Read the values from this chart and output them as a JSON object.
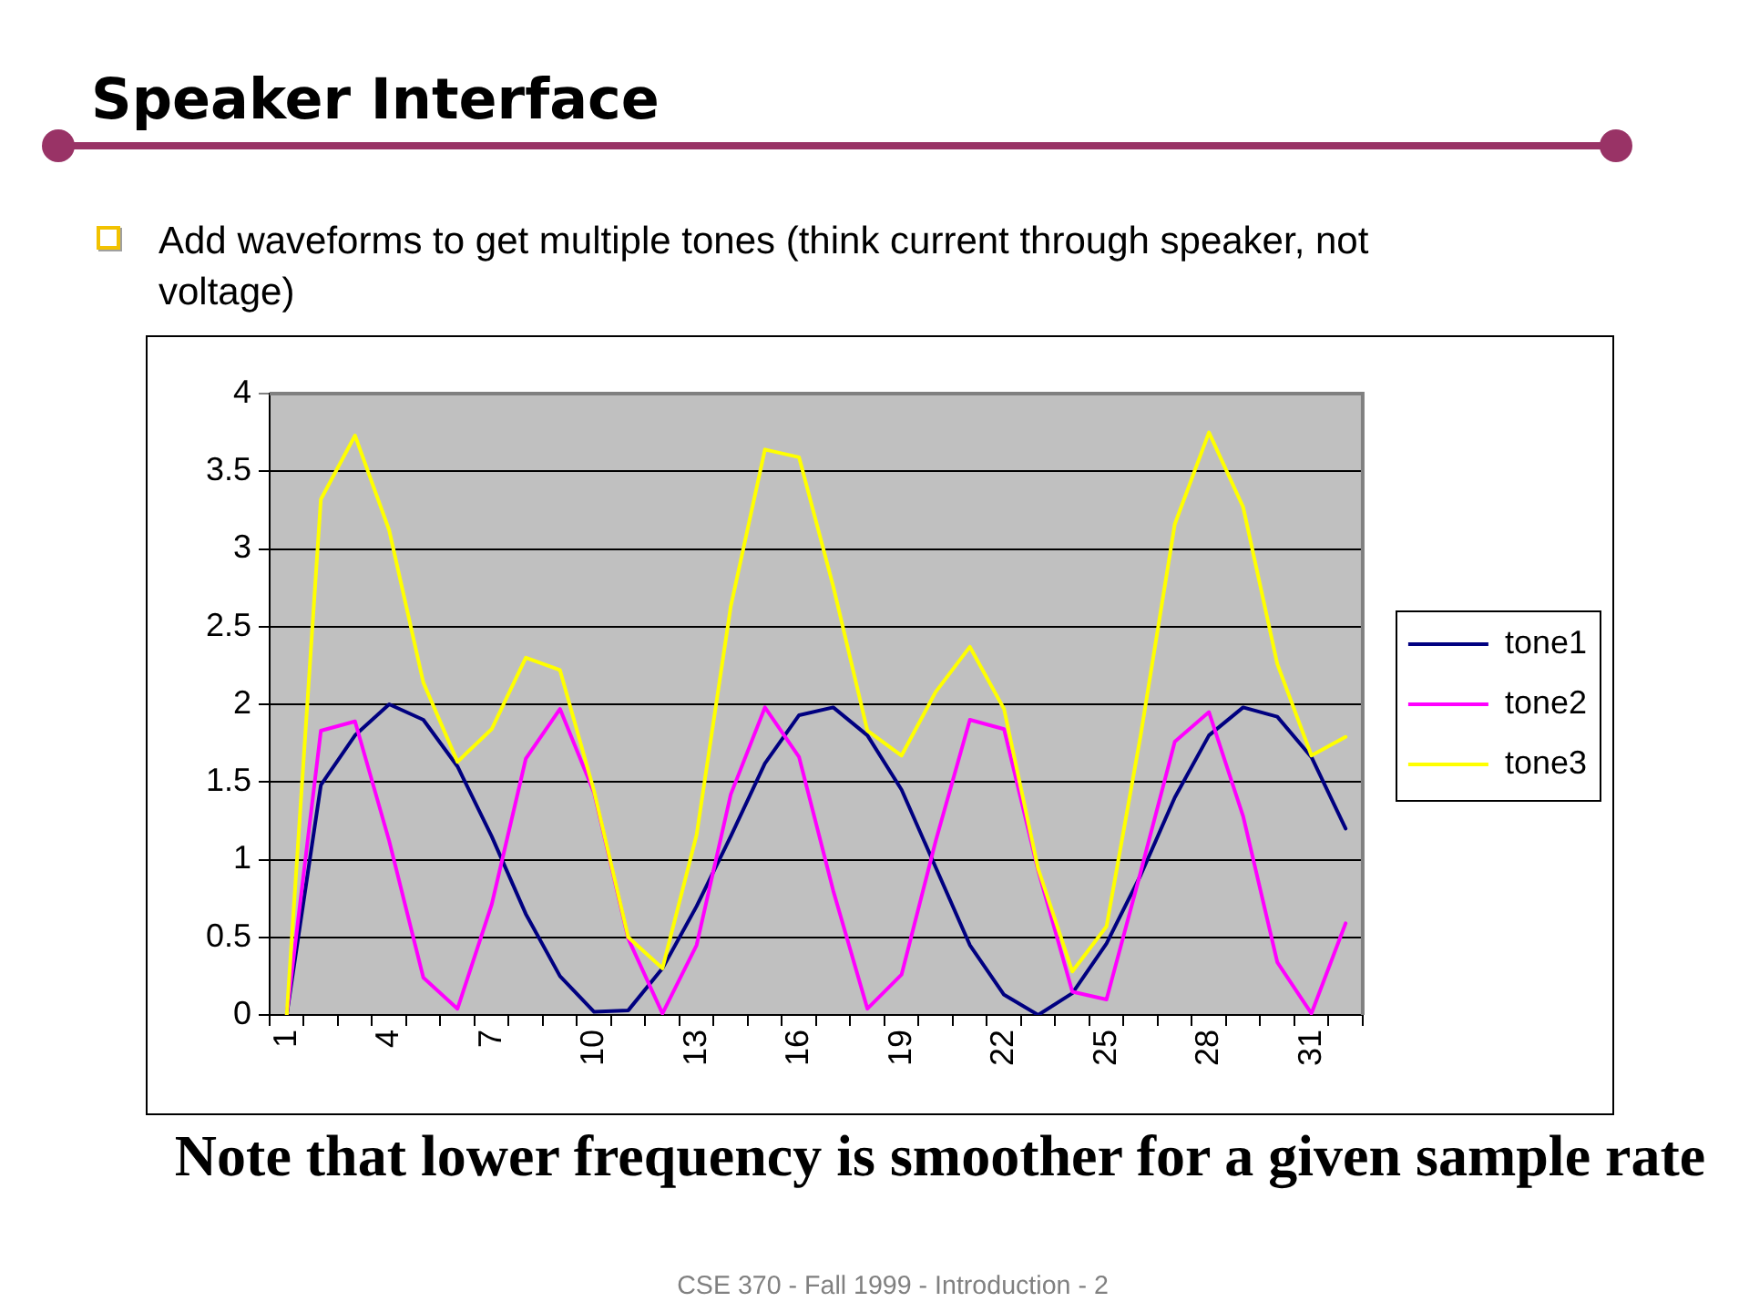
{
  "chart_data": {
    "type": "line",
    "title": "Speaker Interface",
    "subtitle": "Add waveforms to get multiple tones (think current through speaker, not voltage)",
    "annotations": [
      "Note that lower frequency is smoother for a given sample rate",
      "CSE 370 - Fall 1999 - Introduction - 2"
    ],
    "categories": [
      "1",
      null,
      null,
      "4",
      null,
      null,
      "7",
      null,
      null,
      "10",
      null,
      null,
      "13",
      null,
      null,
      "16",
      null,
      null,
      "19",
      null,
      null,
      "22",
      null,
      null,
      "25",
      null,
      null,
      "28",
      null,
      null,
      "31",
      null
    ],
    "series": [
      {
        "name": "tone1",
        "color": "#000080",
        "values": [
          0,
          1.48,
          1.8,
          2,
          1.9,
          1.6,
          1.15,
          0.65,
          0.25,
          0.02,
          0.03,
          0.3,
          0.7,
          1.15,
          1.62,
          1.93,
          1.98,
          1.8,
          1.45,
          0.95,
          0.45,
          0.13,
          0,
          0.14,
          0.46,
          0.9,
          1.4,
          1.8,
          1.98,
          1.92,
          1.66,
          1.2
        ]
      },
      {
        "name": "tone2",
        "color": "#ff00ff",
        "values": [
          0,
          1.83,
          1.89,
          1.12,
          0.24,
          0.04,
          0.71,
          1.65,
          1.97,
          1.43,
          0.49,
          0.01,
          0.45,
          1.42,
          1.98,
          1.66,
          0.8,
          0.04,
          0.26,
          1.12,
          1.9,
          1.84,
          0.93,
          0.15,
          0.1,
          0.92,
          1.76,
          1.95,
          1.28,
          0.34,
          0.01,
          0.59
        ]
      },
      {
        "name": "tone3",
        "color": "#ffff00",
        "values": [
          0,
          3.32,
          3.73,
          3.12,
          2.14,
          1.63,
          1.84,
          2.3,
          2.22,
          1.44,
          0.5,
          0.3,
          1.16,
          2.63,
          3.64,
          3.59,
          2.76,
          1.83,
          1.67,
          2.08,
          2.37,
          1.97,
          0.94,
          0.28,
          0.57,
          1.8,
          3.16,
          3.75,
          3.27,
          2.26,
          1.67,
          1.79
        ]
      }
    ],
    "ylim": [
      0,
      4
    ],
    "yticks": [
      0,
      0.5,
      1,
      1.5,
      2,
      2.5,
      3,
      3.5,
      4
    ],
    "grid": "y",
    "legend": "right",
    "marker": "none",
    "line_style": "solid"
  }
}
